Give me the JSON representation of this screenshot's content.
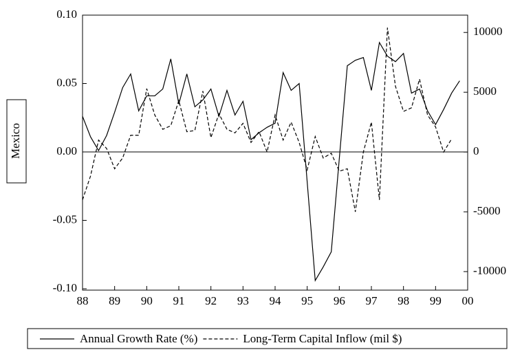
{
  "chart_data": {
    "type": "line",
    "y_label": "Mexico",
    "x": [
      1988,
      1988.25,
      1988.5,
      1988.75,
      1989,
      1989.25,
      1989.5,
      1989.75,
      1990,
      1990.25,
      1990.5,
      1990.75,
      1991,
      1991.25,
      1991.5,
      1991.75,
      1992,
      1992.25,
      1992.5,
      1992.75,
      1993,
      1993.25,
      1993.5,
      1993.75,
      1994,
      1994.25,
      1994.5,
      1994.75,
      1995,
      1995.25,
      1995.5,
      1995.75,
      1996,
      1996.25,
      1996.5,
      1996.75,
      1997,
      1997.25,
      1997.5,
      1997.75,
      1998,
      1998.25,
      1998.5,
      1998.75,
      1999,
      1999.25,
      1999.5,
      1999.75
    ],
    "series": [
      {
        "name": "Annual Growth Rate (%)",
        "color": "#000000",
        "dash": "solid",
        "values": [
          0.026,
          0.011,
          0.001,
          0.012,
          0.029,
          0.047,
          0.057,
          0.03,
          0.041,
          0.041,
          0.046,
          0.068,
          0.035,
          0.057,
          0.033,
          0.038,
          0.046,
          0.026,
          0.045,
          0.027,
          0.037,
          0.009,
          0.014,
          0.018,
          0.021,
          0.058,
          0.045,
          0.05,
          -0.022,
          -0.094,
          -0.084,
          -0.073,
          -0.005,
          0.063,
          0.067,
          0.069,
          0.045,
          0.08,
          0.07,
          0.066,
          0.072,
          0.043,
          0.046,
          0.03,
          0.02,
          0.031,
          0.043,
          0.052
        ]
      },
      {
        "name": "Long-Term Capital Inflow (mil $)",
        "color": "#000000",
        "dash": "dashed",
        "axis": "y2",
        "values": [
          -4000,
          -2000,
          1000,
          300,
          -1400,
          -500,
          1400,
          1400,
          5300,
          3100,
          1900,
          2200,
          4300,
          1700,
          1800,
          5100,
          1200,
          3200,
          1900,
          1600,
          2400,
          800,
          1700,
          0,
          3100,
          1000,
          2500,
          800,
          -1500,
          1300,
          -500,
          -100,
          -1600,
          -1400,
          -5000,
          0,
          2500,
          -4000,
          10400,
          5500,
          3400,
          3700,
          6100,
          3100,
          2100,
          0,
          1100,
          null
        ]
      }
    ],
    "xlim": [
      1988,
      2000
    ],
    "xticks": [
      {
        "value": 1988,
        "label": "88"
      },
      {
        "value": 1989,
        "label": "89"
      },
      {
        "value": 1990,
        "label": "90"
      },
      {
        "value": 1991,
        "label": "91"
      },
      {
        "value": 1992,
        "label": "92"
      },
      {
        "value": 1993,
        "label": "93"
      },
      {
        "value": 1994,
        "label": "94"
      },
      {
        "value": 1995,
        "label": "95"
      },
      {
        "value": 1996,
        "label": "96"
      },
      {
        "value": 1997,
        "label": "97"
      },
      {
        "value": 1998,
        "label": "98"
      },
      {
        "value": 1999,
        "label": "99"
      },
      {
        "value": 2000,
        "label": "00"
      }
    ],
    "ylim": [
      -0.101,
      0.1
    ],
    "yticks": [
      {
        "value": 0.1,
        "label": "0.10"
      },
      {
        "value": 0.05,
        "label": "0.05"
      },
      {
        "value": 0,
        "label": "0.00"
      },
      {
        "value": -0.05,
        "label": "-0.05"
      },
      {
        "value": -0.1,
        "label": "-0.10"
      }
    ],
    "y2lim": [
      -11550,
      11450
    ],
    "y2ticks": [
      10000,
      5000,
      0,
      -5000,
      -10000
    ],
    "zero_line": true
  }
}
